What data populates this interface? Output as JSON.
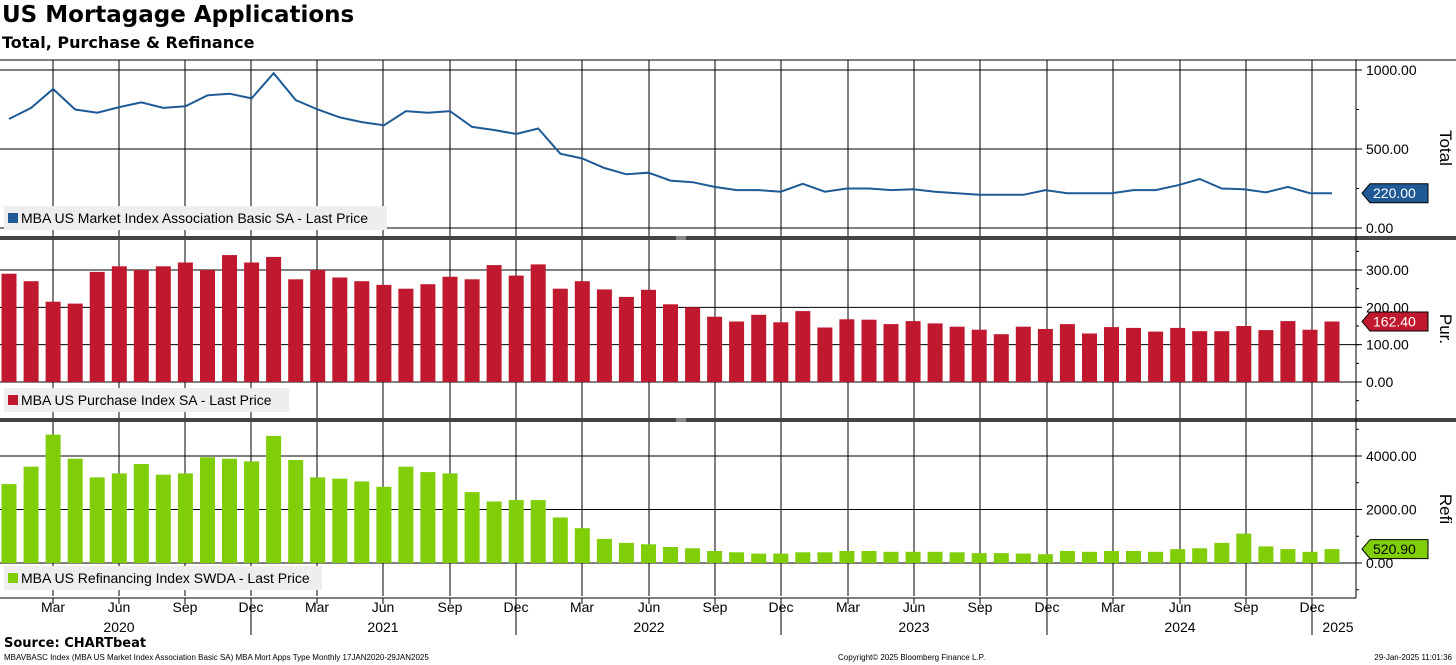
{
  "title": "US Mortagage Applications",
  "subtitle": "Total, Purchase & Refinance",
  "source": "Source: CHARTbeat",
  "footer": {
    "left": "MBAVBASC Index (MBA US Market Index Association Basic SA) MBA Mort Apps Type  Monthly 17JAN2020-29JAN2025",
    "center": "Copyright© 2025 Bloomberg Finance L.P.",
    "right": "29-Jan-2025 11:01:36"
  },
  "chart_data": [
    {
      "type": "line",
      "ylabel": "Total",
      "legend": "MBA US Market Index Association Basic SA - Last Price",
      "legend_position": "bottom-left",
      "color": "#1f5a96",
      "last_value_label": "220.00",
      "yticks": [
        0,
        500,
        1000
      ],
      "ytick_labels": [
        "0.00",
        "500.00",
        "1000.00"
      ],
      "ylim": [
        -40,
        1020
      ],
      "x": [
        "2020-01",
        "2020-02",
        "2020-03",
        "2020-04",
        "2020-05",
        "2020-06",
        "2020-07",
        "2020-08",
        "2020-09",
        "2020-10",
        "2020-11",
        "2020-12",
        "2021-01",
        "2021-02",
        "2021-03",
        "2021-04",
        "2021-05",
        "2021-06",
        "2021-07",
        "2021-08",
        "2021-09",
        "2021-10",
        "2021-11",
        "2021-12",
        "2022-01",
        "2022-02",
        "2022-03",
        "2022-04",
        "2022-05",
        "2022-06",
        "2022-07",
        "2022-08",
        "2022-09",
        "2022-10",
        "2022-11",
        "2022-12",
        "2023-01",
        "2023-02",
        "2023-03",
        "2023-04",
        "2023-05",
        "2023-06",
        "2023-07",
        "2023-08",
        "2023-09",
        "2023-10",
        "2023-11",
        "2023-12",
        "2024-01",
        "2024-02",
        "2024-03",
        "2024-04",
        "2024-05",
        "2024-06",
        "2024-07",
        "2024-08",
        "2024-09",
        "2024-10",
        "2024-11",
        "2024-12",
        "2025-01"
      ],
      "values": [
        690,
        760,
        880,
        750,
        730,
        765,
        795,
        760,
        770,
        840,
        850,
        820,
        980,
        810,
        750,
        700,
        670,
        650,
        740,
        730,
        740,
        640,
        620,
        595,
        630,
        470,
        440,
        380,
        340,
        350,
        300,
        290,
        260,
        240,
        240,
        230,
        280,
        230,
        250,
        250,
        240,
        245,
        230,
        220,
        210,
        210,
        210,
        240,
        220,
        220,
        220,
        240,
        240,
        270,
        310,
        250,
        245,
        225,
        260,
        220,
        220
      ]
    },
    {
      "type": "bar",
      "ylabel": "Pur.",
      "legend": "MBA US Purchase Index SA - Last Price",
      "legend_position": "bottom-left",
      "color": "#c0182e",
      "last_value_label": "162.40",
      "yticks": [
        0,
        100,
        200,
        300
      ],
      "ytick_labels": [
        "0.00",
        "100.00",
        "200.00",
        "300.00"
      ],
      "ylim": [
        -115,
        345
      ],
      "values": [
        290,
        270,
        215,
        210,
        295,
        310,
        300,
        310,
        320,
        300,
        340,
        320,
        335,
        275,
        300,
        280,
        270,
        260,
        250,
        262,
        282,
        275,
        313,
        285,
        315,
        250,
        270,
        248,
        228,
        247,
        208,
        200,
        175,
        162,
        180,
        160,
        190,
        146,
        168,
        167,
        155,
        163,
        157,
        148,
        140,
        128,
        148,
        142,
        155,
        130,
        147,
        145,
        135,
        145,
        136,
        136,
        150,
        139,
        163,
        140,
        162
      ]
    },
    {
      "type": "bar",
      "ylabel": "Refi",
      "legend": "MBA US Refinancing Index SWDA - Last Price",
      "legend_position": "bottom-left",
      "color": "#7fce08",
      "last_value_label": "520.90",
      "yticks": [
        0,
        2000,
        4000
      ],
      "ytick_labels": [
        "0.00",
        "2000.00",
        "4000.00"
      ],
      "ylim": [
        -1300,
        5400
      ],
      "values": [
        2950,
        3600,
        4800,
        3900,
        3200,
        3350,
        3700,
        3300,
        3350,
        3950,
        3900,
        3800,
        4750,
        3850,
        3200,
        3150,
        3050,
        2850,
        3600,
        3400,
        3350,
        2650,
        2300,
        2350,
        2350,
        1700,
        1300,
        900,
        750,
        700,
        600,
        550,
        450,
        400,
        350,
        350,
        400,
        400,
        450,
        450,
        420,
        420,
        420,
        400,
        370,
        370,
        350,
        330,
        450,
        420,
        450,
        450,
        420,
        520,
        550,
        750,
        1100,
        620,
        520,
        420,
        520
      ]
    }
  ],
  "x_axis": {
    "month_labels": [
      "Mar",
      "Jun",
      "Sep",
      "Dec",
      "Mar",
      "Jun",
      "Sep",
      "Dec",
      "Mar",
      "Jun",
      "Sep",
      "Dec",
      "Mar",
      "Jun",
      "Sep",
      "Dec",
      "Mar",
      "Jun",
      "Sep",
      "Dec"
    ],
    "year_labels": [
      "2020",
      "2021",
      "2022",
      "2023",
      "2024",
      "2025"
    ]
  }
}
